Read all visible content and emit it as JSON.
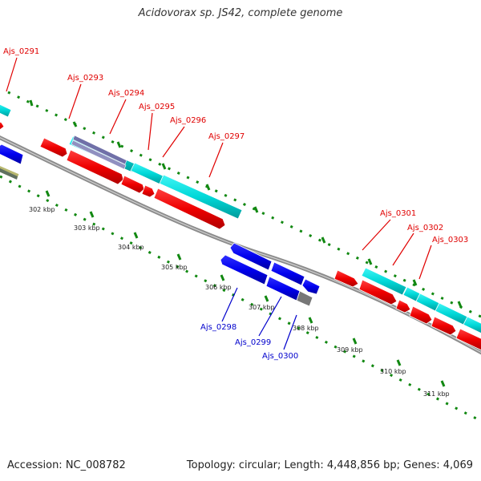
{
  "title": "Acidovorax sp. JS42, complete genome",
  "footer": {
    "accession": "Accession: NC_008782",
    "summary": "Topology: circular; Length: 4,448,856 bp; Genes: 4,069"
  },
  "colors": {
    "forward_gene": "#ff0000",
    "reverse_gene": "#0000ff",
    "forward_cds": "#00e5e5",
    "label_forward": "#e00000",
    "label_reverse": "#0000cc",
    "ticks": "#118811",
    "backbone": "#8c8c8c",
    "pseudo": "#888888",
    "rna": "#7070a8",
    "misc": "#b8b870"
  },
  "kbp_labels": [
    "302 kbp",
    "303 kbp",
    "304 kbp",
    "305 kbp",
    "306 kbp",
    "307 kbp",
    "308 kbp",
    "309 kbp",
    "310 kbp",
    "311 kbp"
  ],
  "gene_labels": [
    "Ajs_0291",
    "Ajs_0293",
    "Ajs_0294",
    "Ajs_0295",
    "Ajs_0296",
    "Ajs_0297",
    "Ajs_0298",
    "Ajs_0299",
    "Ajs_0300",
    "Ajs_0301",
    "Ajs_0302",
    "Ajs_0303"
  ]
}
